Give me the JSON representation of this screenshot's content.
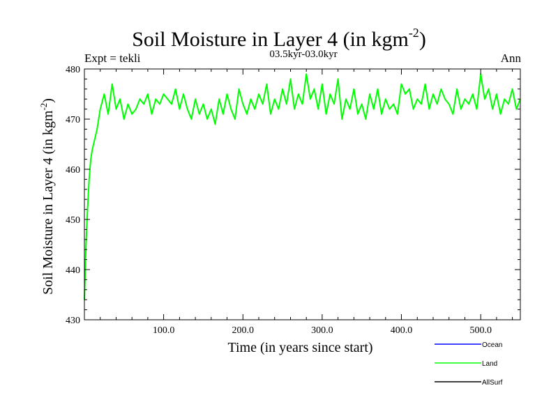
{
  "header": {
    "title_main": "Soil Moisture in Layer 4 (in kgm",
    "title_exp": "-2",
    "title_end": ")",
    "experiment": "Expt = tekli",
    "period": "03.5kyr-03.0kyr",
    "season": "Ann"
  },
  "colors": {
    "ocean": "#0000ff",
    "land": "#00ff00",
    "allsurf": "#000000",
    "axis": "#000000"
  },
  "chart_data": {
    "type": "line",
    "title": "Soil Moisture in Layer 4 (in kgm-2)",
    "xlabel": "Time (in years since start)",
    "ylabel_main": "Soil Moisture in Layer 4 (in kgm",
    "ylabel_exp": "-2",
    "ylabel_end": ")",
    "xlim": [
      0,
      550
    ],
    "ylim": [
      430,
      480
    ],
    "xticks": [
      {
        "value": 100,
        "label": "100.0"
      },
      {
        "value": 200,
        "label": "200.0"
      },
      {
        "value": 300,
        "label": "300.0"
      },
      {
        "value": 400,
        "label": "400.0"
      },
      {
        "value": 500,
        "label": "500.0"
      }
    ],
    "yticks": [
      {
        "value": 430,
        "label": "430"
      },
      {
        "value": 440,
        "label": "440"
      },
      {
        "value": 450,
        "label": "450"
      },
      {
        "value": 460,
        "label": "460"
      },
      {
        "value": 470,
        "label": "470"
      },
      {
        "value": 480,
        "label": "480"
      }
    ],
    "legend": [
      {
        "name": "Ocean",
        "color": "#0000ff"
      },
      {
        "name": "Land",
        "color": "#00ff00"
      },
      {
        "name": "AllSurf",
        "color": "#000000"
      }
    ],
    "series": [
      {
        "name": "Land",
        "color": "#00ff00",
        "x": [
          0,
          2,
          4,
          6,
          8,
          10,
          13,
          16,
          20,
          25,
          30,
          35,
          40,
          45,
          50,
          55,
          60,
          65,
          70,
          75,
          80,
          85,
          90,
          95,
          100,
          105,
          110,
          115,
          120,
          125,
          130,
          135,
          140,
          145,
          150,
          155,
          160,
          165,
          170,
          175,
          180,
          185,
          190,
          195,
          200,
          205,
          210,
          215,
          220,
          225,
          230,
          235,
          240,
          245,
          250,
          255,
          260,
          265,
          270,
          275,
          280,
          285,
          290,
          295,
          300,
          305,
          310,
          315,
          320,
          325,
          330,
          335,
          340,
          345,
          350,
          355,
          360,
          365,
          370,
          375,
          380,
          385,
          390,
          395,
          400,
          405,
          410,
          415,
          420,
          425,
          430,
          435,
          440,
          445,
          450,
          455,
          460,
          465,
          470,
          475,
          480,
          485,
          490,
          495,
          500,
          505,
          510,
          515,
          520,
          525,
          530,
          535,
          540,
          545,
          550
        ],
        "values": [
          434,
          445,
          452,
          458,
          462,
          464,
          466,
          468,
          472,
          475,
          471,
          477,
          472,
          474,
          470,
          473,
          471,
          472,
          474,
          473,
          475,
          471,
          474,
          473,
          475,
          474,
          473,
          476,
          472,
          475,
          472,
          470,
          474,
          471,
          473,
          470,
          472,
          469,
          474,
          471,
          475,
          472,
          470,
          476,
          473,
          471,
          474,
          472,
          475,
          473,
          477,
          471,
          474,
          472,
          476,
          473,
          478,
          472,
          475,
          473,
          479,
          474,
          476,
          472,
          477,
          471,
          475,
          473,
          478,
          470,
          474,
          472,
          476,
          471,
          473,
          470,
          475,
          472,
          476,
          471,
          474,
          472,
          473,
          471,
          477,
          475,
          476,
          472,
          474,
          473,
          477,
          472,
          475,
          473,
          476,
          474,
          473,
          471,
          476,
          472,
          474,
          473,
          475,
          472,
          479,
          474,
          476,
          472,
          475,
          471,
          474,
          473,
          476,
          472,
          474
        ]
      }
    ]
  }
}
